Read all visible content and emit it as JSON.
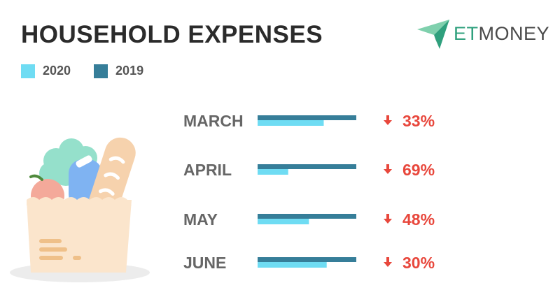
{
  "title": "HOUSEHOLD EXPENSES",
  "logo": {
    "part1": "ET",
    "part2": "MONEY"
  },
  "icons": [
    "paper-plane-logo-icon",
    "down-arrow-icon",
    "grocery-bag-illustration"
  ],
  "colors": {
    "series_2020": "#6fdcf3",
    "series_2019": "#367e99",
    "decline": "#e8473c",
    "label": "#666666",
    "title": "#2b2b2b"
  },
  "chart_data": {
    "type": "bar",
    "orientation": "horizontal",
    "categories": [
      "MARCH",
      "APRIL",
      "MAY",
      "JUNE"
    ],
    "series": [
      {
        "name": "2020",
        "values": [
          0.67,
          0.31,
          0.52,
          0.7
        ]
      },
      {
        "name": "2019",
        "values": [
          1.0,
          1.0,
          1.0,
          1.0
        ]
      }
    ],
    "change_labels": [
      "33%",
      "69%",
      "48%",
      "30%"
    ],
    "change_direction": "down",
    "legend": {
      "placement": "top-left",
      "entries": [
        "2020",
        "2019"
      ]
    },
    "grid": false,
    "axes_visible": false,
    "xlim": [
      0,
      1
    ]
  }
}
